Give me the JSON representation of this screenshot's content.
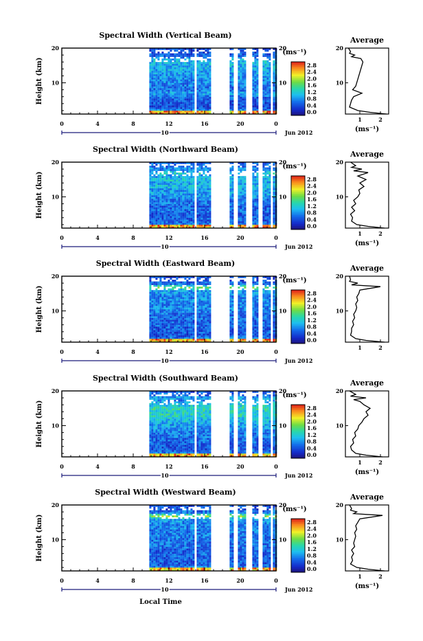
{
  "figure": {
    "xlabel": "Local Time",
    "date_label": "Jun 2012",
    "day_label": "10",
    "avg_title": "Average",
    "avg_unit": "(ms⁻¹)",
    "cbar_unit": "(ms⁻¹)",
    "ylabel": "Height (km)"
  },
  "chart_data": [
    {
      "type": "heatmap",
      "title": "Spectral Width (Vertical Beam)",
      "xlabel": "",
      "ylabel": "Height (km)",
      "x_ticks": [
        "0",
        "4",
        "8",
        "12",
        "16",
        "20",
        "0"
      ],
      "xlim": [
        0,
        24
      ],
      "ylim": [
        1,
        20
      ],
      "y_ticks": [
        "20",
        "10"
      ],
      "colorbar": {
        "unit": "(ms⁻¹)",
        "ticks": [
          "2.8",
          "2.4",
          "2.0",
          "1.6",
          "1.2",
          "0.8",
          "0.4",
          "0.0"
        ],
        "range": [
          0,
          3.0
        ]
      },
      "data_coverage_hours": [
        [
          9.8,
          24
        ]
      ],
      "data_gaps_hours": [
        [
          14.7,
          15.1
        ],
        [
          16.6,
          18.6
        ],
        [
          19.2,
          19.6
        ],
        [
          20.6,
          21.2
        ],
        [
          21.9,
          22.4
        ],
        [
          23.3,
          23.6
        ]
      ],
      "average_profile": {
        "title": "Average",
        "xlabel": "(ms⁻¹)",
        "x_ticks": [
          "1",
          "2"
        ],
        "xlim": [
          0.3,
          2.4
        ],
        "ylim": [
          1,
          20
        ],
        "height_km": [
          1,
          1.5,
          2,
          3,
          4,
          5,
          6,
          7,
          8,
          9,
          10,
          11,
          12,
          13,
          14,
          15,
          16,
          17,
          17.5,
          18,
          18.5,
          19,
          20
        ],
        "width_ms": [
          2.3,
          1.5,
          0.9,
          0.5,
          0.55,
          0.6,
          0.7,
          1.1,
          0.65,
          0.8,
          0.85,
          0.9,
          0.95,
          1.0,
          1.05,
          1.1,
          1.15,
          1.05,
          0.6,
          0.75,
          0.5,
          0.55,
          0.45
        ]
      }
    },
    {
      "type": "heatmap",
      "title": "Spectral Width (Northward Beam)",
      "xlabel": "",
      "ylabel": "Height (km)",
      "x_ticks": [
        "0",
        "4",
        "8",
        "12",
        "16",
        "20",
        "0"
      ],
      "xlim": [
        0,
        24
      ],
      "ylim": [
        1,
        20
      ],
      "y_ticks": [
        "20",
        "10"
      ],
      "colorbar": {
        "unit": "(ms⁻¹)",
        "ticks": [
          "2.8",
          "2.4",
          "2.0",
          "1.6",
          "1.2",
          "0.8",
          "0.4",
          "0.0"
        ],
        "range": [
          0,
          3.0
        ]
      },
      "data_coverage_hours": [
        [
          9.8,
          24
        ]
      ],
      "data_gaps_hours": [
        [
          14.7,
          15.1
        ],
        [
          16.6,
          18.6
        ],
        [
          19.2,
          19.6
        ],
        [
          20.6,
          21.2
        ],
        [
          21.9,
          22.4
        ],
        [
          23.3,
          23.6
        ]
      ],
      "average_profile": {
        "title": "Average",
        "xlabel": "(ms⁻¹)",
        "x_ticks": [
          "1",
          "2"
        ],
        "xlim": [
          0.3,
          2.4
        ],
        "ylim": [
          1,
          20
        ],
        "height_km": [
          1,
          1.5,
          2,
          3,
          4,
          5,
          6,
          7,
          8,
          9,
          10,
          11,
          12,
          13,
          14,
          15,
          16,
          17,
          17.5,
          18,
          18.5,
          19,
          20
        ],
        "width_ms": [
          2.2,
          1.4,
          0.85,
          0.6,
          0.65,
          0.55,
          0.75,
          0.6,
          0.8,
          0.7,
          0.9,
          1.0,
          0.95,
          1.2,
          1.0,
          1.3,
          0.9,
          1.4,
          0.7,
          1.1,
          0.6,
          0.8,
          0.55
        ]
      }
    },
    {
      "type": "heatmap",
      "title": "Spectral Width (Eastward Beam)",
      "xlabel": "",
      "ylabel": "Height (km)",
      "x_ticks": [
        "0",
        "4",
        "8",
        "12",
        "16",
        "20",
        "0"
      ],
      "xlim": [
        0,
        24
      ],
      "ylim": [
        1,
        20
      ],
      "y_ticks": [
        "20",
        "10"
      ],
      "colorbar": {
        "unit": "(ms⁻¹)",
        "ticks": [
          "2.8",
          "2.4",
          "2.0",
          "1.6",
          "1.2",
          "0.8",
          "0.4",
          "0.0"
        ],
        "range": [
          0,
          3.0
        ]
      },
      "data_coverage_hours": [
        [
          9.8,
          24
        ]
      ],
      "data_gaps_hours": [
        [
          14.7,
          15.1
        ],
        [
          16.6,
          18.6
        ],
        [
          19.2,
          19.6
        ],
        [
          20.6,
          21.2
        ],
        [
          21.9,
          22.4
        ],
        [
          23.3,
          23.6
        ]
      ],
      "average_profile": {
        "title": "Average",
        "xlabel": "",
        "x_ticks": [
          "1",
          "2"
        ],
        "xlim": [
          0.3,
          2.4
        ],
        "ylim": [
          1,
          20
        ],
        "height_km": [
          1,
          1.5,
          2,
          3,
          4,
          5,
          6,
          7,
          8,
          9,
          10,
          11,
          12,
          13,
          14,
          15,
          16,
          17,
          17.5,
          18,
          18.5,
          19,
          20
        ],
        "width_ms": [
          2.2,
          1.3,
          0.8,
          0.55,
          0.6,
          0.6,
          0.7,
          0.65,
          0.75,
          0.7,
          0.8,
          0.85,
          0.8,
          0.9,
          0.85,
          0.95,
          1.0,
          2.0,
          0.6,
          0.9,
          0.5,
          0.55,
          0.5
        ]
      }
    },
    {
      "type": "heatmap",
      "title": "Spectral Width (Southward Beam)",
      "xlabel": "",
      "ylabel": "Height (km)",
      "x_ticks": [
        "0",
        "4",
        "8",
        "12",
        "16",
        "20",
        "0"
      ],
      "xlim": [
        0,
        24
      ],
      "ylim": [
        1,
        20
      ],
      "y_ticks": [
        "20",
        "10"
      ],
      "colorbar": {
        "unit": "(ms⁻¹)",
        "ticks": [
          "2.8",
          "2.4",
          "2.0",
          "1.6",
          "1.2",
          "0.8",
          "0.4",
          "0.0"
        ],
        "range": [
          0,
          3.0
        ]
      },
      "data_coverage_hours": [
        [
          9.8,
          24
        ]
      ],
      "data_gaps_hours": [
        [
          14.7,
          15.1
        ],
        [
          16.6,
          18.6
        ],
        [
          19.2,
          19.6
        ],
        [
          20.6,
          21.2
        ],
        [
          21.9,
          22.4
        ],
        [
          23.3,
          23.6
        ]
      ],
      "average_profile": {
        "title": "Average",
        "xlabel": "(ms⁻¹)",
        "x_ticks": [
          "1",
          "2"
        ],
        "xlim": [
          0.3,
          2.4
        ],
        "ylim": [
          1,
          20
        ],
        "height_km": [
          1,
          1.5,
          2,
          3,
          4,
          5,
          6,
          7,
          8,
          9,
          10,
          11,
          12,
          13,
          14,
          15,
          16,
          17,
          17.5,
          18,
          18.5,
          19,
          20
        ],
        "width_ms": [
          2.1,
          1.3,
          0.8,
          0.6,
          0.55,
          0.7,
          0.65,
          0.8,
          0.75,
          0.9,
          0.95,
          1.1,
          1.2,
          1.4,
          1.3,
          1.5,
          1.2,
          1.0,
          0.7,
          1.3,
          0.55,
          0.8,
          0.5
        ]
      }
    },
    {
      "type": "heatmap",
      "title": "Spectral Width (Westward Beam)",
      "xlabel": "Local Time",
      "ylabel": "Height (km)",
      "x_ticks": [
        "0",
        "4",
        "8",
        "12",
        "16",
        "20",
        "0"
      ],
      "xlim": [
        0,
        24
      ],
      "ylim": [
        1,
        20
      ],
      "y_ticks": [
        "20",
        "10"
      ],
      "colorbar": {
        "unit": "(ms⁻¹)",
        "ticks": [
          "2.8",
          "2.4",
          "2.0",
          "1.6",
          "1.2",
          "0.8",
          "0.4",
          "0.0"
        ],
        "range": [
          0,
          3.0
        ]
      },
      "data_coverage_hours": [
        [
          9.8,
          24
        ]
      ],
      "data_gaps_hours": [
        [
          14.7,
          15.1
        ],
        [
          16.6,
          18.6
        ],
        [
          19.2,
          19.6
        ],
        [
          20.6,
          21.2
        ],
        [
          21.9,
          22.4
        ],
        [
          23.3,
          23.6
        ]
      ],
      "average_profile": {
        "title": "Average",
        "xlabel": "(ms⁻¹)",
        "x_ticks": [
          "1",
          "2"
        ],
        "xlim": [
          0.3,
          2.4
        ],
        "ylim": [
          1,
          20
        ],
        "height_km": [
          1,
          1.5,
          2,
          3,
          4,
          5,
          6,
          7,
          8,
          9,
          10,
          11,
          12,
          13,
          14,
          15,
          16,
          17,
          17.5,
          18,
          18.5,
          19,
          20
        ],
        "width_ms": [
          2.2,
          1.4,
          0.85,
          0.55,
          0.65,
          0.6,
          0.7,
          0.6,
          0.75,
          0.7,
          0.75,
          0.8,
          0.75,
          0.85,
          0.8,
          0.9,
          1.0,
          2.1,
          0.7,
          0.85,
          0.55,
          0.6,
          0.5
        ]
      }
    }
  ]
}
